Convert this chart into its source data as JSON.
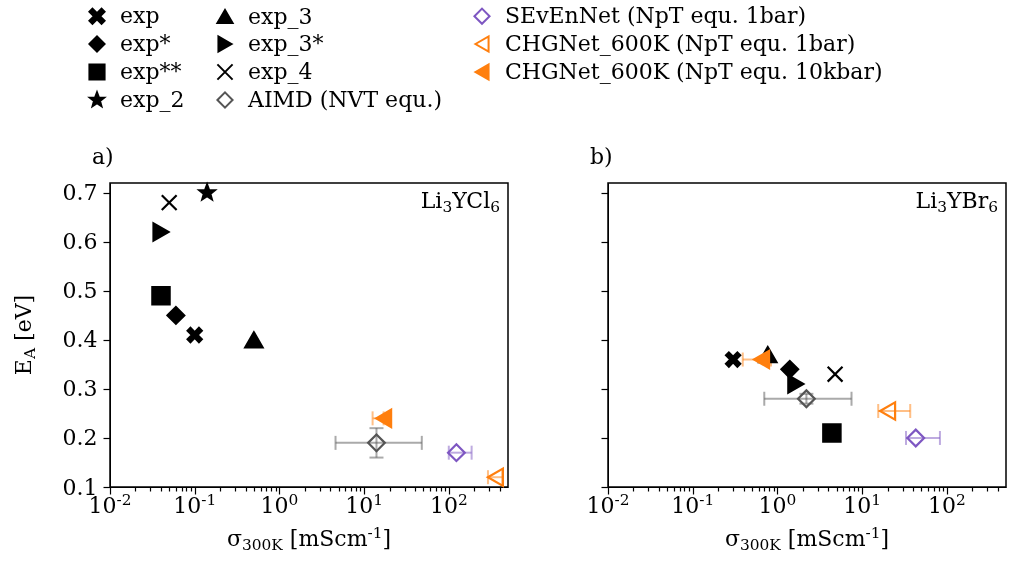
{
  "chart_data": [
    {
      "type": "scatter",
      "title": "a)",
      "xlabel": "σ$_{300K}$ [mScm$^{-1}$]",
      "ylabel": "E$_{A}$ [eV]",
      "annotations": [
        "Li$_{3}$YCl$_{6}$"
      ],
      "log": "x",
      "legend": "top",
      "xlim": [
        0.01,
        500
      ],
      "ylim": [
        0.1,
        0.72
      ],
      "xticks": [
        {
          "value": 0.01,
          "label": "10$^{-2}$"
        },
        {
          "value": 0.02,
          "label": null
        },
        {
          "value": 0.03,
          "label": null
        },
        {
          "value": 0.04,
          "label": null
        },
        {
          "value": 0.05,
          "label": null
        },
        {
          "value": 0.06,
          "label": null
        },
        {
          "value": 0.07,
          "label": null
        },
        {
          "value": 0.08,
          "label": null
        },
        {
          "value": 0.09,
          "label": null
        },
        {
          "value": 0.1,
          "label": "10$^{-1}$"
        },
        {
          "value": 0.2,
          "label": null
        },
        {
          "value": 0.3,
          "label": null
        },
        {
          "value": 0.4,
          "label": null
        },
        {
          "value": 0.5,
          "label": null
        },
        {
          "value": 0.6,
          "label": null
        },
        {
          "value": 0.7,
          "label": null
        },
        {
          "value": 0.8,
          "label": null
        },
        {
          "value": 0.9,
          "label": null
        },
        {
          "value": 1,
          "label": "10$^{0}$"
        },
        {
          "value": 2,
          "label": null
        },
        {
          "value": 3,
          "label": null
        },
        {
          "value": 4,
          "label": null
        },
        {
          "value": 5,
          "label": null
        },
        {
          "value": 6,
          "label": null
        },
        {
          "value": 7,
          "label": null
        },
        {
          "value": 8,
          "label": null
        },
        {
          "value": 9,
          "label": null
        },
        {
          "value": 10,
          "label": "10$^{1}$"
        },
        {
          "value": 20,
          "label": null
        },
        {
          "value": 30,
          "label": null
        },
        {
          "value": 40,
          "label": null
        },
        {
          "value": 50,
          "label": null
        },
        {
          "value": 60,
          "label": null
        },
        {
          "value": 70,
          "label": null
        },
        {
          "value": 80,
          "label": null
        },
        {
          "value": 90,
          "label": null
        },
        {
          "value": 100,
          "label": "10$^{2}$"
        },
        {
          "value": 200,
          "label": null
        },
        {
          "value": 300,
          "label": null
        },
        {
          "value": 400,
          "label": null
        }
      ],
      "yticks": [
        0.1,
        0.2,
        0.3,
        0.4,
        0.5,
        0.6,
        0.7
      ],
      "series": [
        {
          "name": "exp",
          "color": "#000000",
          "marker": "cross",
          "x": [
            0.1
          ],
          "values": [
            0.41
          ]
        },
        {
          "name": "exp*",
          "color": "#000000",
          "marker": "diamond",
          "x": [
            0.06
          ],
          "values": [
            0.45
          ]
        },
        {
          "name": "exp**",
          "color": "#000000",
          "marker": "square",
          "x": [
            0.04
          ],
          "values": [
            0.49
          ]
        },
        {
          "name": "exp_2",
          "color": "#000000",
          "marker": "star",
          "x": [
            0.14
          ],
          "values": [
            0.7
          ]
        },
        {
          "name": "exp_3",
          "color": "#000000",
          "marker": "triangle",
          "x": [
            0.5
          ],
          "values": [
            0.4
          ]
        },
        {
          "name": "exp_3*",
          "color": "#000000",
          "marker": "triangle-right",
          "x": [
            0.04
          ],
          "values": [
            0.62
          ]
        },
        {
          "name": "exp_4",
          "color": "#000000",
          "marker": "x",
          "x": [
            0.05
          ],
          "values": [
            0.68
          ]
        },
        {
          "name": "AIMD (NVT equ.)",
          "color": "#555555",
          "marker": "diamond-open",
          "x": [
            14
          ],
          "values": [
            0.19
          ],
          "xerrors": [
            [
              4.6,
              48
            ]
          ],
          "errors": [
            [
              0.16,
              0.22
            ]
          ]
        },
        {
          "name": "SEvEnNet (NpT equ. 1bar)",
          "color": "#7e57c2",
          "marker": "diamond-open",
          "x": [
            123
          ],
          "values": [
            0.17
          ],
          "xerrors": [
            [
              100,
              186
            ]
          ]
        },
        {
          "name": "CHGNet_600K (NpT equ. 1bar)",
          "color": "#ff7f0e",
          "marker": "triangle-left-open",
          "x": [
            355
          ],
          "values": [
            0.12
          ],
          "xerrors": [
            [
              290,
              430
            ]
          ]
        },
        {
          "name": "CHGNet_600K (NpT equ. 10kbar)",
          "color": "#ff7f0e",
          "marker": "triangle-left",
          "x": [
            17
          ],
          "values": [
            0.24
          ],
          "xerrors": [
            [
              12.6,
              17
            ]
          ]
        }
      ]
    },
    {
      "type": "scatter",
      "title": "b)",
      "xlabel": "σ$_{300K}$ [mScm$^{-1}$]",
      "annotations": [
        "Li$_{3}$YBr$_{6}$"
      ],
      "log": "x",
      "tick_labels": "x",
      "xlim": [
        0.01,
        500
      ],
      "ylim": [
        0.1,
        0.72
      ],
      "xticks": [
        {
          "value": 0.01,
          "label": "10$^{-2}$"
        },
        {
          "value": 0.02,
          "label": null
        },
        {
          "value": 0.03,
          "label": null
        },
        {
          "value": 0.04,
          "label": null
        },
        {
          "value": 0.05,
          "label": null
        },
        {
          "value": 0.06,
          "label": null
        },
        {
          "value": 0.07,
          "label": null
        },
        {
          "value": 0.08,
          "label": null
        },
        {
          "value": 0.09,
          "label": null
        },
        {
          "value": 0.1,
          "label": "10$^{-1}$"
        },
        {
          "value": 0.2,
          "label": null
        },
        {
          "value": 0.3,
          "label": null
        },
        {
          "value": 0.4,
          "label": null
        },
        {
          "value": 0.5,
          "label": null
        },
        {
          "value": 0.6,
          "label": null
        },
        {
          "value": 0.7,
          "label": null
        },
        {
          "value": 0.8,
          "label": null
        },
        {
          "value": 0.9,
          "label": null
        },
        {
          "value": 1,
          "label": "10$^{0}$"
        },
        {
          "value": 2,
          "label": null
        },
        {
          "value": 3,
          "label": null
        },
        {
          "value": 4,
          "label": null
        },
        {
          "value": 5,
          "label": null
        },
        {
          "value": 6,
          "label": null
        },
        {
          "value": 7,
          "label": null
        },
        {
          "value": 8,
          "label": null
        },
        {
          "value": 9,
          "label": null
        },
        {
          "value": 10,
          "label": "10$^{1}$"
        },
        {
          "value": 20,
          "label": null
        },
        {
          "value": 30,
          "label": null
        },
        {
          "value": 40,
          "label": null
        },
        {
          "value": 50,
          "label": null
        },
        {
          "value": 60,
          "label": null
        },
        {
          "value": 70,
          "label": null
        },
        {
          "value": 80,
          "label": null
        },
        {
          "value": 90,
          "label": null
        },
        {
          "value": 100,
          "label": "10$^{2}$"
        },
        {
          "value": 200,
          "label": null
        },
        {
          "value": 300,
          "label": null
        },
        {
          "value": 400,
          "label": null
        }
      ],
      "yticks": [
        0.1,
        0.2,
        0.3,
        0.4,
        0.5,
        0.6,
        0.7
      ],
      "series": [
        {
          "color": "#000000",
          "marker": "cross",
          "x": [
            0.3
          ],
          "values": [
            0.36
          ]
        },
        {
          "color": "#000000",
          "marker": "diamond",
          "x": [
            1.4
          ],
          "values": [
            0.34
          ]
        },
        {
          "color": "#000000",
          "marker": "square",
          "x": [
            4.4
          ],
          "values": [
            0.21
          ]
        },
        {
          "color": "#000000",
          "marker": "triangle",
          "x": [
            0.77
          ],
          "values": [
            0.37
          ]
        },
        {
          "color": "#000000",
          "marker": "triangle-right",
          "x": [
            1.65
          ],
          "values": [
            0.31
          ]
        },
        {
          "color": "#000000",
          "marker": "x",
          "x": [
            4.8
          ],
          "values": [
            0.33
          ]
        },
        {
          "color": "#555555",
          "marker": "diamond-open",
          "x": [
            2.2
          ],
          "values": [
            0.28
          ],
          "xerrors": [
            [
              0.7,
              7.5
            ]
          ],
          "errors": [
            [
              0.27,
              0.29
            ]
          ]
        },
        {
          "color": "#7e57c2",
          "marker": "diamond-open",
          "x": [
            43
          ],
          "values": [
            0.2
          ],
          "xerrors": [
            [
              33,
              83
            ]
          ]
        },
        {
          "color": "#ff7f0e",
          "marker": "triangle-left-open",
          "x": [
            20
          ],
          "values": [
            0.255
          ],
          "xerrors": [
            [
              15.5,
              37
            ]
          ]
        },
        {
          "color": "#ff7f0e",
          "marker": "triangle-left",
          "x": [
            0.65
          ],
          "values": [
            0.36
          ],
          "xerrors": [
            [
              0.39,
              0.84
            ]
          ]
        }
      ]
    }
  ]
}
